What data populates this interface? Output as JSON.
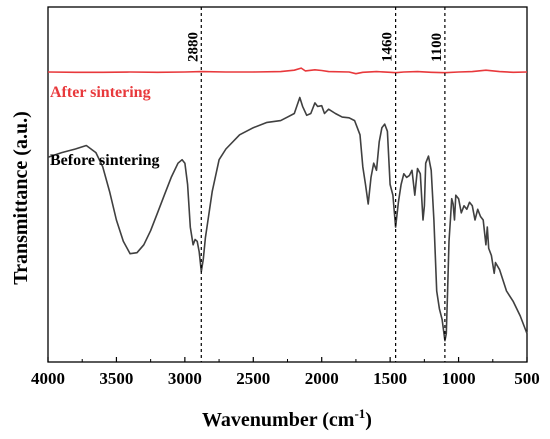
{
  "chart_data": {
    "type": "line",
    "title": "",
    "xlabel": "Wavenumber (cm",
    "xlabel_sup": "-1",
    "xlabel_close": ")",
    "ylabel": "Transmittance (a.u.)",
    "xlim": [
      4000,
      500
    ],
    "x_reversed": true,
    "ylim": [
      0,
      1
    ],
    "y_ticks_shown": false,
    "grid": false,
    "x_ticks": [
      4000,
      3500,
      3000,
      2500,
      2000,
      1500,
      1000,
      500
    ],
    "x_tick_labels": [
      "4000",
      "3500",
      "3000",
      "2500",
      "2000",
      "1500",
      "1000",
      "500"
    ],
    "annotations": [
      {
        "x": 2880,
        "label": "2880",
        "style": "dashed-vertical"
      },
      {
        "x": 1460,
        "label": "1460",
        "style": "dashed-vertical"
      },
      {
        "x": 1100,
        "label": "1100",
        "style": "dashed-vertical"
      }
    ],
    "series": [
      {
        "name": "After sintering",
        "color": "#e8393c",
        "points": [
          [
            4000,
            0.817
          ],
          [
            3800,
            0.816
          ],
          [
            3600,
            0.816
          ],
          [
            3400,
            0.817
          ],
          [
            3200,
            0.816
          ],
          [
            3000,
            0.817
          ],
          [
            2880,
            0.818
          ],
          [
            2700,
            0.817
          ],
          [
            2500,
            0.817
          ],
          [
            2300,
            0.818
          ],
          [
            2200,
            0.822
          ],
          [
            2150,
            0.828
          ],
          [
            2120,
            0.82
          ],
          [
            2050,
            0.823
          ],
          [
            2000,
            0.821
          ],
          [
            1950,
            0.818
          ],
          [
            1800,
            0.817
          ],
          [
            1750,
            0.812
          ],
          [
            1700,
            0.816
          ],
          [
            1600,
            0.818
          ],
          [
            1500,
            0.816
          ],
          [
            1460,
            0.815
          ],
          [
            1400,
            0.817
          ],
          [
            1300,
            0.818
          ],
          [
            1200,
            0.816
          ],
          [
            1100,
            0.815
          ],
          [
            1000,
            0.817
          ],
          [
            900,
            0.818
          ],
          [
            800,
            0.822
          ],
          [
            700,
            0.818
          ],
          [
            600,
            0.816
          ],
          [
            500,
            0.817
          ]
        ]
      },
      {
        "name": "Before sintering",
        "color": "#404040",
        "points": [
          [
            4000,
            0.577
          ],
          [
            3900,
            0.59
          ],
          [
            3800,
            0.6
          ],
          [
            3720,
            0.61
          ],
          [
            3650,
            0.59
          ],
          [
            3600,
            0.55
          ],
          [
            3550,
            0.48
          ],
          [
            3500,
            0.4
          ],
          [
            3450,
            0.34
          ],
          [
            3400,
            0.305
          ],
          [
            3350,
            0.308
          ],
          [
            3300,
            0.33
          ],
          [
            3250,
            0.37
          ],
          [
            3200,
            0.42
          ],
          [
            3150,
            0.47
          ],
          [
            3100,
            0.52
          ],
          [
            3050,
            0.56
          ],
          [
            3020,
            0.57
          ],
          [
            3000,
            0.56
          ],
          [
            2980,
            0.5
          ],
          [
            2960,
            0.38
          ],
          [
            2940,
            0.33
          ],
          [
            2925,
            0.345
          ],
          [
            2910,
            0.34
          ],
          [
            2895,
            0.31
          ],
          [
            2880,
            0.255
          ],
          [
            2865,
            0.29
          ],
          [
            2850,
            0.35
          ],
          [
            2800,
            0.48
          ],
          [
            2750,
            0.57
          ],
          [
            2700,
            0.6
          ],
          [
            2600,
            0.64
          ],
          [
            2500,
            0.66
          ],
          [
            2400,
            0.675
          ],
          [
            2300,
            0.68
          ],
          [
            2250,
            0.69
          ],
          [
            2200,
            0.7
          ],
          [
            2160,
            0.745
          ],
          [
            2140,
            0.72
          ],
          [
            2110,
            0.695
          ],
          [
            2080,
            0.7
          ],
          [
            2050,
            0.73
          ],
          [
            2030,
            0.72
          ],
          [
            2000,
            0.722
          ],
          [
            1980,
            0.7
          ],
          [
            1950,
            0.712
          ],
          [
            1900,
            0.7
          ],
          [
            1850,
            0.69
          ],
          [
            1800,
            0.688
          ],
          [
            1760,
            0.68
          ],
          [
            1740,
            0.66
          ],
          [
            1720,
            0.64
          ],
          [
            1700,
            0.55
          ],
          [
            1680,
            0.5
          ],
          [
            1660,
            0.445
          ],
          [
            1640,
            0.52
          ],
          [
            1620,
            0.56
          ],
          [
            1600,
            0.54
          ],
          [
            1580,
            0.62
          ],
          [
            1560,
            0.66
          ],
          [
            1540,
            0.67
          ],
          [
            1520,
            0.65
          ],
          [
            1500,
            0.5
          ],
          [
            1480,
            0.47
          ],
          [
            1460,
            0.38
          ],
          [
            1440,
            0.45
          ],
          [
            1420,
            0.5
          ],
          [
            1400,
            0.53
          ],
          [
            1380,
            0.52
          ],
          [
            1360,
            0.525
          ],
          [
            1340,
            0.54
          ],
          [
            1320,
            0.47
          ],
          [
            1300,
            0.545
          ],
          [
            1280,
            0.53
          ],
          [
            1260,
            0.4
          ],
          [
            1250,
            0.44
          ],
          [
            1240,
            0.56
          ],
          [
            1220,
            0.58
          ],
          [
            1210,
            0.56
          ],
          [
            1200,
            0.54
          ],
          [
            1180,
            0.4
          ],
          [
            1160,
            0.2
          ],
          [
            1140,
            0.15
          ],
          [
            1120,
            0.12
          ],
          [
            1100,
            0.06
          ],
          [
            1090,
            0.08
          ],
          [
            1080,
            0.2
          ],
          [
            1070,
            0.34
          ],
          [
            1060,
            0.4
          ],
          [
            1050,
            0.46
          ],
          [
            1040,
            0.445
          ],
          [
            1030,
            0.4
          ],
          [
            1020,
            0.47
          ],
          [
            1000,
            0.46
          ],
          [
            980,
            0.42
          ],
          [
            960,
            0.44
          ],
          [
            940,
            0.43
          ],
          [
            920,
            0.45
          ],
          [
            900,
            0.44
          ],
          [
            880,
            0.4
          ],
          [
            860,
            0.43
          ],
          [
            840,
            0.41
          ],
          [
            820,
            0.4
          ],
          [
            800,
            0.33
          ],
          [
            790,
            0.38
          ],
          [
            780,
            0.32
          ],
          [
            760,
            0.3
          ],
          [
            740,
            0.25
          ],
          [
            730,
            0.28
          ],
          [
            700,
            0.26
          ],
          [
            650,
            0.2
          ],
          [
            600,
            0.17
          ],
          [
            550,
            0.13
          ],
          [
            500,
            0.08
          ]
        ]
      }
    ]
  }
}
